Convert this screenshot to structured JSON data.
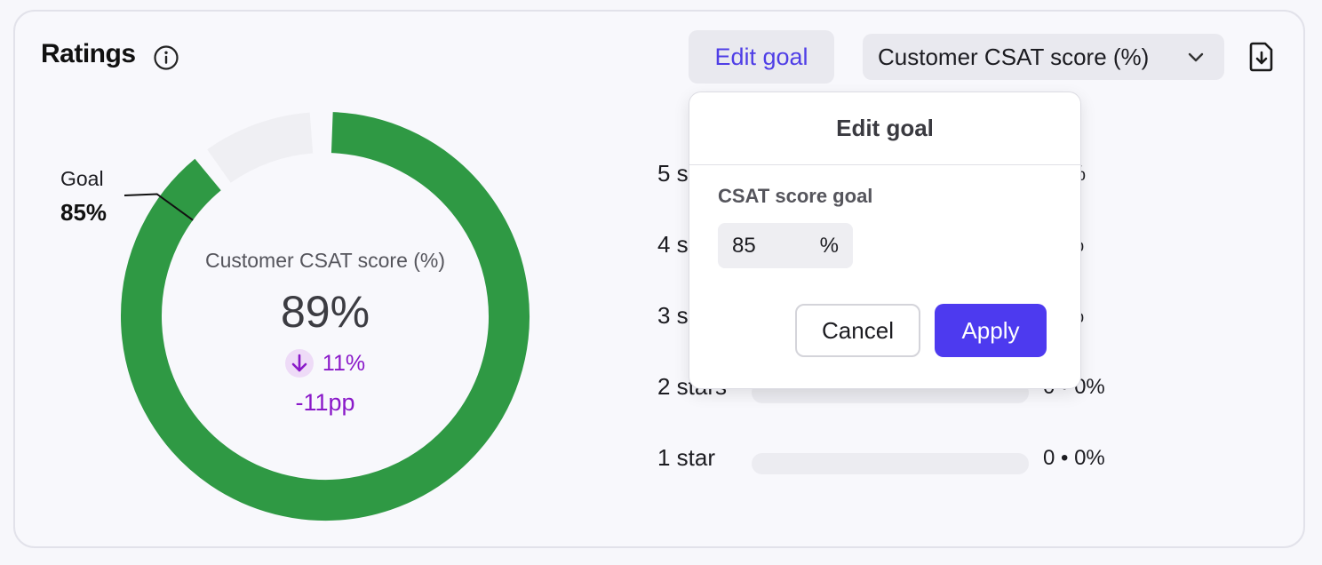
{
  "header": {
    "title": "Ratings",
    "edit_goal_label": "Edit goal",
    "metric_select_value": "Customer CSAT score (%)"
  },
  "donut": {
    "goal_label": "Goal",
    "goal_value": "85%",
    "goal_fraction": 0.85,
    "score_fraction": 0.89,
    "caption": "Customer CSAT score (%)",
    "value": "89%",
    "delta_percent": "11%",
    "delta_pp": "-11pp",
    "colors": {
      "fill": "#2f9944",
      "track": "#efeff3",
      "delta": "#8a19c9"
    }
  },
  "ratings": [
    {
      "label": "5 stars",
      "count": "78%",
      "fraction": 0.78
    },
    {
      "label": "4 stars",
      "count": "11%",
      "fraction": 0.11
    },
    {
      "label": "3 stars",
      "count": "11%",
      "fraction": 0.11
    },
    {
      "label": "2 stars",
      "count": "0 • 0%",
      "fraction": 0
    },
    {
      "label": "1 star",
      "count": "0 • 0%",
      "fraction": 0
    }
  ],
  "popover": {
    "title": "Edit goal",
    "field_label": "CSAT score goal",
    "input_value": "85",
    "input_unit": "%",
    "cancel_label": "Cancel",
    "apply_label": "Apply"
  }
}
